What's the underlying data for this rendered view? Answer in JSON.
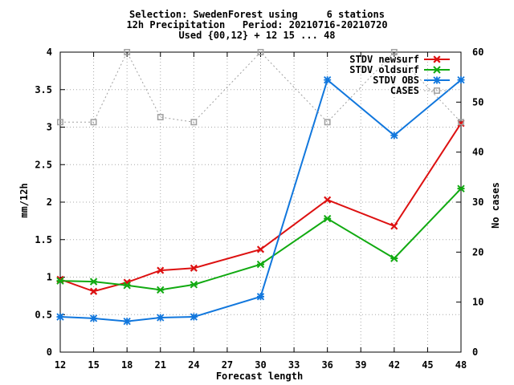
{
  "title": {
    "line1": "Selection: SwedenForest using     6 stations",
    "line2": "12h Precipitation   Period: 20210716-20210720",
    "line3": "Used {00,12} + 12 15 ... 48"
  },
  "chart_data": {
    "type": "line",
    "xlabel": "Forecast length",
    "ylabel": "mm/12h",
    "y2label": "No cases",
    "xlim": [
      12,
      48
    ],
    "ylim": [
      0,
      4
    ],
    "y2lim": [
      0,
      60
    ],
    "xticks": [
      "12",
      "15",
      "18",
      "21",
      "24",
      "27",
      "30",
      "33",
      "36",
      "39",
      "42",
      "45",
      "48"
    ],
    "yticks": [
      "0",
      "0.5",
      "1",
      "1.5",
      "2",
      "2.5",
      "3",
      "3.5",
      "4"
    ],
    "y2ticks": [
      "0",
      "10",
      "20",
      "30",
      "40",
      "50",
      "60"
    ],
    "grid": true,
    "legend_position": "top-right",
    "series": [
      {
        "name": "STDV newsurf",
        "color": "#dd1111",
        "axis": "left",
        "x": [
          12,
          15,
          18,
          21,
          24,
          30,
          36,
          42,
          48
        ],
        "values": [
          0.97,
          0.81,
          0.93,
          1.09,
          1.12,
          1.37,
          2.03,
          1.68,
          3.05
        ]
      },
      {
        "name": "STDV oldsurf",
        "color": "#11aa11",
        "axis": "left",
        "x": [
          12,
          15,
          18,
          21,
          24,
          30,
          36,
          42,
          48
        ],
        "values": [
          0.95,
          0.94,
          0.89,
          0.83,
          0.9,
          1.17,
          1.78,
          1.25,
          2.18
        ]
      },
      {
        "name": "STDV OBS",
        "color": "#1177dd",
        "axis": "left",
        "x": [
          12,
          15,
          18,
          21,
          24,
          30,
          36,
          42,
          48
        ],
        "values": [
          0.47,
          0.45,
          0.41,
          0.46,
          0.47,
          0.74,
          3.63,
          2.89,
          3.63
        ]
      },
      {
        "name": "CASES",
        "color": "#a0a0a0",
        "axis": "right",
        "x": [
          12,
          15,
          18,
          21,
          24,
          30,
          36,
          42,
          48
        ],
        "values": [
          46,
          46,
          60,
          47,
          46,
          60,
          46,
          60,
          46
        ]
      }
    ]
  }
}
